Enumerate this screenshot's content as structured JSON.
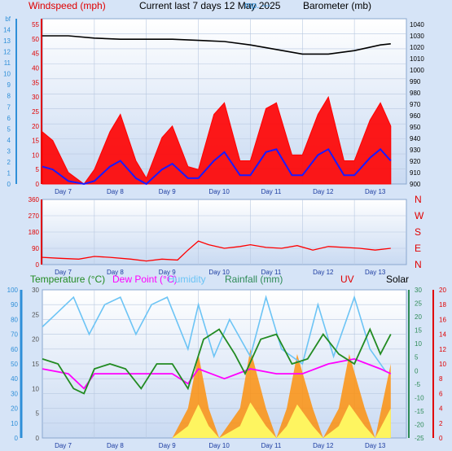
{
  "header": {
    "windspeed_label": "Windspeed (mph)",
    "title_label": "Current last 7 days 12 May 2025",
    "overlay_label": "mp. ---",
    "barometer_label": "Barometer (mb)"
  },
  "legend2": {
    "temperature": "Temperature (°C)",
    "dewpoint": "Dew Point (°C)",
    "humidity": "Humidity",
    "rainfall": "Rainfall (mm)",
    "uv": "UV",
    "solar": "Solar"
  },
  "colors": {
    "wind_gust": "#ff0000",
    "wind_avg": "#1a1aff",
    "barometer": "#000000",
    "winddir": "#ff0000",
    "temperature": "#228b22",
    "dewpoint": "#ff00ff",
    "humidity": "#6cc4f5",
    "uv": "#ff8c00",
    "solar": "#ffff66",
    "axis_blue": "#2f8fd8",
    "axis_red": "#e00000",
    "axis_green": "#2e8b57"
  },
  "chart_data": [
    {
      "type": "line",
      "name": "wind-pressure",
      "x_tick_labels": [
        "Day 7",
        "Day 8",
        "Day 9",
        "Day 10",
        "Day 11",
        "Day 12",
        "Day 13"
      ],
      "y_left_mph_ticks": [
        0,
        5,
        10,
        15,
        20,
        25,
        30,
        35,
        40,
        45,
        50,
        55
      ],
      "y_left_bf_ticks": [
        0,
        1,
        2,
        3,
        4,
        5,
        6,
        7,
        8,
        9,
        10,
        11,
        12,
        13,
        14
      ],
      "y_left_bf_unit": "bf",
      "y_right_ticks": [
        900,
        910,
        920,
        930,
        940,
        950,
        960,
        970,
        980,
        990,
        1000,
        1010,
        1020,
        1030,
        1040
      ],
      "ylim_left": [
        0,
        57
      ],
      "ylim_right": [
        900,
        1045
      ],
      "series": [
        {
          "name": "Windspeed (mph)",
          "role": "gust",
          "x": [
            0,
            0.2,
            0.5,
            0.8,
            1.0,
            1.3,
            1.5,
            1.8,
            2.0,
            2.3,
            2.5,
            2.8,
            3.0,
            3.3,
            3.5,
            3.8,
            4.0,
            4.3,
            4.5,
            4.8,
            5.0,
            5.3,
            5.5,
            5.8,
            6.0,
            6.3,
            6.5,
            6.7
          ],
          "values": [
            18,
            15,
            4,
            0,
            5,
            18,
            24,
            8,
            2,
            16,
            20,
            6,
            5,
            24,
            28,
            8,
            8,
            26,
            28,
            10,
            10,
            24,
            30,
            8,
            8,
            22,
            28,
            20
          ]
        },
        {
          "name": "Wind avg",
          "role": "average",
          "x": [
            0,
            0.2,
            0.5,
            0.8,
            1.0,
            1.3,
            1.5,
            1.8,
            2.0,
            2.3,
            2.5,
            2.8,
            3.0,
            3.3,
            3.5,
            3.8,
            4.0,
            4.3,
            4.5,
            4.8,
            5.0,
            5.3,
            5.5,
            5.8,
            6.0,
            6.3,
            6.5,
            6.7
          ],
          "values": [
            6,
            5,
            1,
            0,
            1,
            6,
            8,
            2,
            0,
            5,
            7,
            2,
            2,
            8,
            11,
            3,
            3,
            11,
            12,
            3,
            3,
            10,
            12,
            3,
            3,
            9,
            12,
            8
          ]
        },
        {
          "name": "Barometer (mb)",
          "x": [
            0,
            0.5,
            1,
            1.5,
            2,
            2.5,
            3,
            3.5,
            4,
            4.5,
            5,
            5.5,
            6,
            6.5,
            6.7
          ],
          "values": [
            1030,
            1030,
            1028,
            1027,
            1027,
            1027,
            1026,
            1025,
            1022,
            1018,
            1014,
            1014,
            1017,
            1022,
            1023
          ]
        }
      ]
    },
    {
      "type": "scatter",
      "name": "wind-direction",
      "x_tick_labels": [
        "Day 7",
        "Day 8",
        "Day 9",
        "Day 10",
        "Day 11",
        "Day 12",
        "Day 13"
      ],
      "y_left_ticks": [
        0,
        90,
        180,
        270,
        360
      ],
      "y_right_labels": [
        "N",
        "W",
        "S",
        "E",
        "N"
      ],
      "ylim": [
        0,
        360
      ],
      "series": [
        {
          "name": "Wind direction",
          "x": [
            0,
            0.3,
            0.7,
            1.0,
            1.3,
            1.7,
            2.0,
            2.3,
            2.6,
            2.8,
            3.0,
            3.2,
            3.5,
            3.8,
            4.0,
            4.3,
            4.6,
            4.9,
            5.2,
            5.5,
            5.8,
            6.1,
            6.4,
            6.7
          ],
          "values": [
            40,
            35,
            30,
            45,
            40,
            30,
            20,
            30,
            25,
            80,
            130,
            110,
            90,
            100,
            110,
            95,
            90,
            105,
            80,
            100,
            95,
            90,
            80,
            90
          ]
        }
      ]
    },
    {
      "type": "line",
      "name": "temperature-humidity-uv",
      "x_tick_labels": [
        "Day 7",
        "Day 8",
        "Day 9",
        "Day 10",
        "Day 11",
        "Day 12",
        "Day 13"
      ],
      "y_humidity_ticks": [
        0,
        10,
        20,
        30,
        40,
        50,
        60,
        70,
        80,
        90,
        100
      ],
      "y_left_ticks": [
        0,
        5,
        10,
        15,
        20,
        25,
        30
      ],
      "y_right_green_ticks": [
        -25,
        -20,
        -15,
        -10,
        -5,
        0,
        5,
        10,
        15,
        20,
        25,
        30
      ],
      "y_right_red_ticks": [
        0,
        2,
        4,
        6,
        8,
        10,
        12,
        14,
        16,
        18,
        20
      ],
      "series": [
        {
          "name": "Temperature (°C)",
          "x": [
            0,
            0.3,
            0.6,
            0.8,
            1.0,
            1.3,
            1.6,
            1.9,
            2.2,
            2.5,
            2.8,
            3.1,
            3.4,
            3.7,
            3.9,
            4.2,
            4.5,
            4.8,
            5.1,
            5.4,
            5.7,
            6.0,
            6.3,
            6.5,
            6.7
          ],
          "values": [
            16,
            15,
            10,
            9,
            14,
            15,
            14,
            10,
            15,
            15,
            10,
            20,
            22,
            17,
            13,
            20,
            21,
            15,
            16,
            21,
            17,
            15,
            22,
            17,
            21
          ]
        },
        {
          "name": "Dew Point (°C)",
          "x": [
            0,
            0.5,
            0.8,
            1.0,
            1.5,
            2.0,
            2.5,
            2.8,
            3.0,
            3.5,
            4.0,
            4.5,
            5.0,
            5.5,
            6.0,
            6.5,
            6.7
          ],
          "values": [
            14,
            13,
            10,
            13,
            13,
            13,
            13,
            11,
            14,
            12,
            14,
            13,
            13,
            15,
            16,
            14,
            13
          ]
        },
        {
          "name": "Humidity",
          "x": [
            0,
            0.3,
            0.6,
            0.9,
            1.2,
            1.5,
            1.8,
            2.1,
            2.4,
            2.8,
            3.0,
            3.3,
            3.6,
            4.0,
            4.3,
            4.6,
            5.0,
            5.3,
            5.6,
            6.0,
            6.3,
            6.6
          ],
          "values": [
            75,
            85,
            95,
            70,
            90,
            95,
            70,
            90,
            95,
            60,
            90,
            55,
            80,
            55,
            95,
            60,
            50,
            90,
            55,
            95,
            60,
            45
          ]
        },
        {
          "name": "UV",
          "x": [
            2.5,
            2.8,
            3.0,
            3.2,
            3.4,
            3.8,
            4.0,
            4.3,
            4.5,
            4.7,
            4.9,
            5.2,
            5.4,
            5.7,
            5.9,
            6.2,
            6.4,
            6.7
          ],
          "values": [
            0,
            6,
            17,
            6,
            0,
            6,
            18,
            6,
            0,
            6,
            17,
            6,
            0,
            6,
            17,
            6,
            0,
            15
          ]
        }
      ]
    }
  ]
}
